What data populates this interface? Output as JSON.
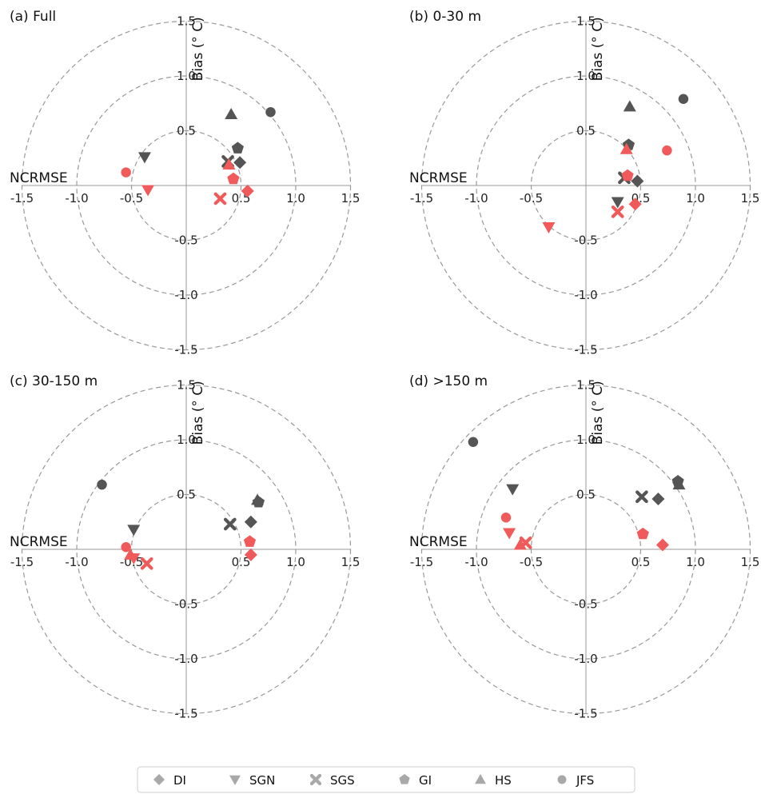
{
  "chart_data": {
    "type": "scatter",
    "subtype": "target-diagram",
    "xlabel": "NCRMSE",
    "ylabel": "Bias (° C)",
    "xlim": [
      -1.5,
      1.5
    ],
    "ylim": [
      -1.5,
      1.5
    ],
    "x_tick_labels": [
      "-1.5",
      "-1.0",
      "-0.5",
      "0.5",
      "1.0",
      "1.5"
    ],
    "y_tick_labels": [
      "1.5",
      "1.0",
      "0.5",
      "-0.5",
      "-1.0",
      "-1.5"
    ],
    "reference_circles": [
      0.5,
      1.0,
      1.5
    ],
    "colors": {
      "group_dark": "#555555",
      "group_red": "#f05a5a",
      "circle": "#999999",
      "axis": "#999999"
    },
    "legend": {
      "position": "bottom-center",
      "entries": [
        {
          "label": "DI",
          "marker": "diamond"
        },
        {
          "label": "SGN",
          "marker": "triangle-down"
        },
        {
          "label": "SGS",
          "marker": "x"
        },
        {
          "label": "GI",
          "marker": "pentagon"
        },
        {
          "label": "HS",
          "marker": "triangle-up"
        },
        {
          "label": "JFS",
          "marker": "circle"
        }
      ]
    },
    "panels": [
      {
        "title": "(a) Full",
        "points": [
          {
            "method": "DI",
            "group": "dark",
            "x": 0.49,
            "y": 0.21
          },
          {
            "method": "SGN",
            "group": "dark",
            "x": -0.38,
            "y": 0.26
          },
          {
            "method": "SGS",
            "group": "dark",
            "x": 0.38,
            "y": 0.22
          },
          {
            "method": "GI",
            "group": "dark",
            "x": 0.47,
            "y": 0.34
          },
          {
            "method": "HS",
            "group": "dark",
            "x": 0.41,
            "y": 0.65
          },
          {
            "method": "JFS",
            "group": "dark",
            "x": 0.77,
            "y": 0.67
          },
          {
            "method": "DI",
            "group": "red",
            "x": 0.56,
            "y": -0.05
          },
          {
            "method": "SGN",
            "group": "red",
            "x": -0.35,
            "y": -0.04
          },
          {
            "method": "SGS",
            "group": "red",
            "x": 0.31,
            "y": -0.12
          },
          {
            "method": "GI",
            "group": "red",
            "x": 0.43,
            "y": 0.06
          },
          {
            "method": "HS",
            "group": "red",
            "x": 0.39,
            "y": 0.19
          },
          {
            "method": "JFS",
            "group": "red",
            "x": -0.55,
            "y": 0.12
          }
        ]
      },
      {
        "title": "(b) 0-30 m",
        "points": [
          {
            "method": "DI",
            "group": "dark",
            "x": 0.47,
            "y": 0.04
          },
          {
            "method": "SGN",
            "group": "dark",
            "x": 0.29,
            "y": -0.15
          },
          {
            "method": "SGS",
            "group": "dark",
            "x": 0.35,
            "y": 0.07
          },
          {
            "method": "GI",
            "group": "dark",
            "x": 0.39,
            "y": 0.37
          },
          {
            "method": "HS",
            "group": "dark",
            "x": 0.4,
            "y": 0.72
          },
          {
            "method": "JFS",
            "group": "dark",
            "x": 0.89,
            "y": 0.79
          },
          {
            "method": "DI",
            "group": "red",
            "x": 0.45,
            "y": -0.17
          },
          {
            "method": "SGN",
            "group": "red",
            "x": -0.34,
            "y": -0.38
          },
          {
            "method": "SGS",
            "group": "red",
            "x": 0.29,
            "y": -0.24
          },
          {
            "method": "GI",
            "group": "red",
            "x": 0.38,
            "y": 0.09
          },
          {
            "method": "HS",
            "group": "red",
            "x": 0.37,
            "y": 0.33
          },
          {
            "method": "JFS",
            "group": "red",
            "x": 0.74,
            "y": 0.32
          }
        ]
      },
      {
        "title": "(c) 30-150 m",
        "points": [
          {
            "method": "DI",
            "group": "dark",
            "x": 0.59,
            "y": 0.25
          },
          {
            "method": "SGN",
            "group": "dark",
            "x": -0.48,
            "y": 0.18
          },
          {
            "method": "SGS",
            "group": "dark",
            "x": 0.4,
            "y": 0.23
          },
          {
            "method": "GI",
            "group": "dark",
            "x": 0.66,
            "y": 0.43
          },
          {
            "method": "HS",
            "group": "dark",
            "x": 0.65,
            "y": 0.45
          },
          {
            "method": "JFS",
            "group": "dark",
            "x": -0.77,
            "y": 0.59
          },
          {
            "method": "DI",
            "group": "red",
            "x": 0.59,
            "y": -0.05
          },
          {
            "method": "SGN",
            "group": "red",
            "x": -0.48,
            "y": -0.08
          },
          {
            "method": "SGS",
            "group": "red",
            "x": -0.36,
            "y": -0.13
          },
          {
            "method": "GI",
            "group": "red",
            "x": 0.58,
            "y": 0.07
          },
          {
            "method": "HS",
            "group": "red",
            "x": -0.51,
            "y": -0.05
          },
          {
            "method": "JFS",
            "group": "red",
            "x": -0.55,
            "y": 0.02
          }
        ]
      },
      {
        "title": "(d) >150 m",
        "points": [
          {
            "method": "DI",
            "group": "dark",
            "x": 0.66,
            "y": 0.46
          },
          {
            "method": "SGN",
            "group": "dark",
            "x": -0.67,
            "y": 0.55
          },
          {
            "method": "SGS",
            "group": "dark",
            "x": 0.51,
            "y": 0.48
          },
          {
            "method": "GI",
            "group": "dark",
            "x": 0.84,
            "y": 0.62
          },
          {
            "method": "HS",
            "group": "dark",
            "x": 0.85,
            "y": 0.59
          },
          {
            "method": "JFS",
            "group": "dark",
            "x": -1.03,
            "y": 0.98
          },
          {
            "method": "DI",
            "group": "red",
            "x": 0.7,
            "y": 0.04
          },
          {
            "method": "SGN",
            "group": "red",
            "x": -0.7,
            "y": 0.15
          },
          {
            "method": "SGS",
            "group": "red",
            "x": -0.55,
            "y": 0.06
          },
          {
            "method": "GI",
            "group": "red",
            "x": 0.52,
            "y": 0.14
          },
          {
            "method": "HS",
            "group": "red",
            "x": -0.6,
            "y": 0.04
          },
          {
            "method": "JFS",
            "group": "red",
            "x": -0.73,
            "y": 0.29
          }
        ]
      }
    ]
  }
}
